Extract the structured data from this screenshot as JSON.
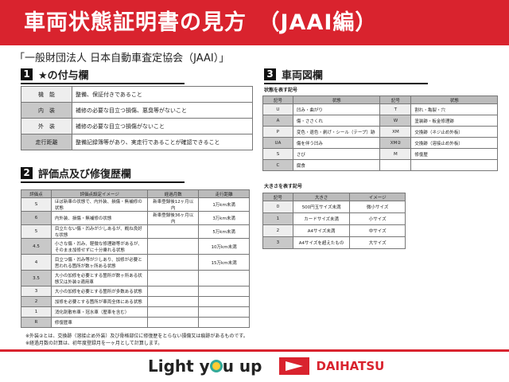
{
  "title": "車両状態証明書の見方　（JAAI編）",
  "organization": "「一般財団法人 日本自動車査定協会（JAAI）」",
  "section1": {
    "num": "1",
    "title": "★の付与欄",
    "rows": [
      {
        "key": "機　能",
        "value": "整備、保証付きであること"
      },
      {
        "key": "内　装",
        "value": "補修の必要な目立つ損傷、悪臭等がないこと"
      },
      {
        "key": "外　装",
        "value": "補修の必要な目立つ損傷がないこと"
      },
      {
        "key": "走行距離",
        "value": "整備記録簿等があり、実走行であることが確認できること"
      }
    ]
  },
  "section2": {
    "num": "2",
    "title": "評価点及び修復歴欄",
    "headers": [
      "評価点",
      "評価点設定イメージ",
      "経過月数",
      "走行距離"
    ],
    "rows": [
      [
        "S",
        "ほぼ新車の状態で、内外装、損傷・無補修の状態",
        "新車登録後12ヶ月以内",
        "1万km未満"
      ],
      [
        "6",
        "内外装、損傷・無補修の状態",
        "新車登録後36ヶ月以内",
        "3万km未満"
      ],
      [
        "5",
        "目立たない傷・凹みが少しあるが、概ね良好な状態",
        "",
        "5万km未満"
      ],
      [
        "4.5",
        "小さな傷・凹み、軽微な修理跡等があるが、そのまま加修せずに十分乗れる状態",
        "",
        "10万km未満"
      ],
      [
        "4",
        "目立つ傷・凹み等が少しあり、加修が必要と思われる箇所が数ヶ所ある状態",
        "",
        "15万km未満"
      ],
      [
        "3.5",
        "大小の加修を必要とする箇所が数ヶ所ある状態又は外装②適用車",
        "",
        ""
      ],
      [
        "3",
        "大小の加修を必要とする箇所が多数ある状態",
        "",
        ""
      ],
      [
        "2",
        "加修を必要とする箇所が車両全体にある状態",
        "",
        ""
      ],
      [
        "1",
        "消化剤散布車・冠水車（歴車を含む）",
        "",
        ""
      ],
      [
        "R",
        "修復歴車",
        "",
        ""
      ]
    ]
  },
  "notes": [
    "※外装②とは、交換跡（溶接止め外装）及び骨格部位に修復歴をとらない損傷又は痕跡があるものです。",
    "※経過月数の計算は、初年度登録月を一ヶ月として計算します。"
  ],
  "section3": {
    "num": "3",
    "title": "車両図欄",
    "state_caption": "状態を表す記号",
    "state_headers": [
      "記号",
      "状態",
      "記号",
      "状態"
    ],
    "state_rows": [
      [
        "U",
        "凹み・曲がり",
        "T",
        "割れ・亀裂・穴"
      ],
      [
        "A",
        "傷・ささくれ",
        "W",
        "塗装跡・板金修理跡"
      ],
      [
        "P",
        "変色・退色・剥げ・シール（テープ）跡",
        "XM",
        "交換跡（ネジ止め外板）"
      ],
      [
        "UA",
        "傷を伴う凹み",
        "XM②",
        "交換跡（溶接止め外板）"
      ],
      [
        "S",
        "さび",
        "M",
        "修復歴"
      ],
      [
        "C",
        "腐食",
        "",
        ""
      ]
    ],
    "size_caption": "大きさを表す記号",
    "size_headers": [
      "記号",
      "大きさ",
      "イメージ"
    ],
    "size_rows": [
      [
        "0",
        "500円玉サイズ未満",
        "微小サイズ"
      ],
      [
        "1",
        "カードサイズ未満",
        "小サイズ"
      ],
      [
        "2",
        "A4サイズ未満",
        "中サイズ"
      ],
      [
        "3",
        "A4サイズを超えたもの",
        "大サイズ"
      ]
    ]
  },
  "footer": {
    "slogan_a": "Light y",
    "slogan_b": "u up",
    "brand": "DAIHATSU"
  },
  "colors": {
    "accent": "#d9232e"
  }
}
